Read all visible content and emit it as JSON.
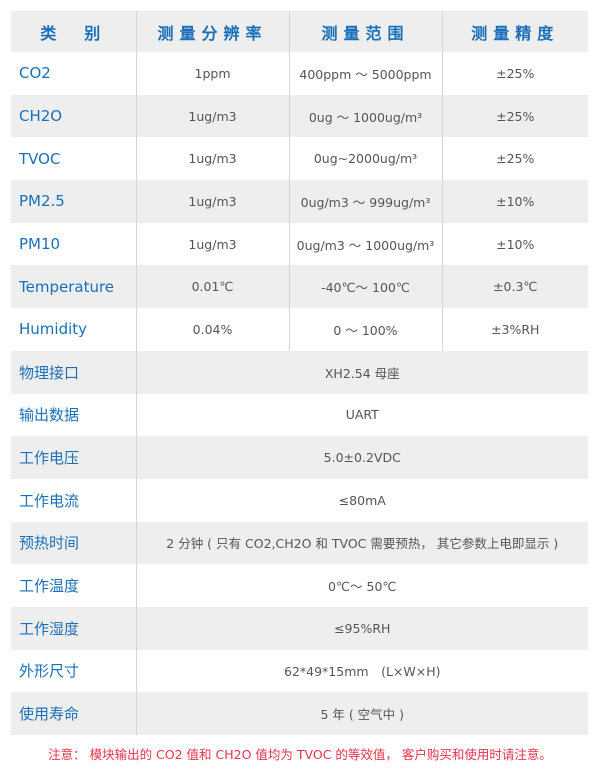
{
  "header": [
    "类　别",
    "测量分辨率",
    "测量范围",
    "测量精度"
  ],
  "sensors": [
    {
      "name": "CO2",
      "resolution": "1ppm",
      "range": "400ppm ～ 5000ppm",
      "accuracy": "±25%"
    },
    {
      "name": "CH2O",
      "resolution": "1ug/m3",
      "range": "0ug ～ 1000ug/m³",
      "accuracy": "±25%"
    },
    {
      "name": "TVOC",
      "resolution": "1ug/m3",
      "range": "0ug~2000ug/m³",
      "accuracy": "±25%"
    },
    {
      "name": "PM2.5",
      "resolution": "1ug/m3",
      "range": "0ug/m3 ～ 999ug/m³",
      "accuracy": "±10%"
    },
    {
      "name": "PM10",
      "resolution": "1ug/m3",
      "range": "0ug/m3 ～ 1000ug/m³",
      "accuracy": "±10%"
    },
    {
      "name": "Temperature",
      "resolution": "0.01℃",
      "range": "-40℃～ 100℃",
      "accuracy": "±0.3℃"
    },
    {
      "name": "Humidity",
      "resolution": "0.04%",
      "range": "0 ～ 100%",
      "accuracy": "±3%RH"
    }
  ],
  "specs": [
    {
      "label": "物理接口",
      "value": "XH2.54 母座"
    },
    {
      "label": "输出数据",
      "value": "UART"
    },
    {
      "label": "工作电压",
      "value": "5.0±0.2VDC"
    },
    {
      "label": "工作电流",
      "value": "≤80mA"
    },
    {
      "label": "预热时间",
      "value": "2 分钟 ( 只有 CO2,CH2O 和 TVOC 需要预热，  其它参数上电即显示 )"
    },
    {
      "label": "工作温度",
      "value": "0℃～ 50℃"
    },
    {
      "label": "工作湿度",
      "value": "≤95%RH"
    },
    {
      "label": "外形尺寸",
      "value": "62*49*15mm　(L×W×H)"
    },
    {
      "label": "使用寿命",
      "value": "5 年 ( 空气中 )"
    }
  ],
  "note": "注意：  模块输出的 CO2 值和 CH2O 值均为 TVOC 的等效值，  客户购买和使用时请注意。",
  "colors": {
    "label_blue": "#1a6fb8",
    "note_red": "#e8334a",
    "row_grey": "#eeeeee"
  }
}
